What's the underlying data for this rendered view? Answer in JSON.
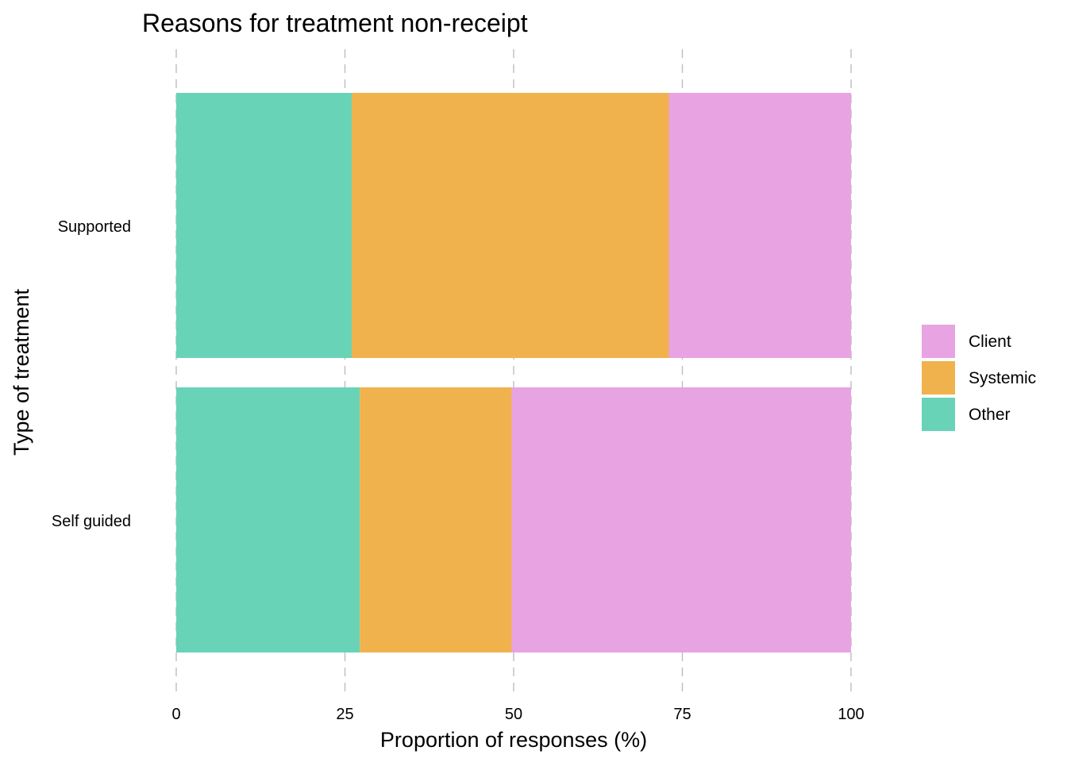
{
  "chart_data": {
    "type": "bar",
    "orientation": "horizontal",
    "stacked": true,
    "title": "Reasons for treatment non-receipt",
    "xlabel": "Proportion of responses (%)",
    "ylabel": "Type of treatment",
    "xlim": [
      0,
      100
    ],
    "x_ticks": [
      0,
      25,
      50,
      75,
      100
    ],
    "grid": "vertical dashed",
    "categories": [
      "Supported",
      "Self guided"
    ],
    "series": [
      {
        "name": "Other",
        "color": "#69D3B8",
        "values": [
          26,
          27.2
        ]
      },
      {
        "name": "Systemic",
        "color": "#F0B24D",
        "values": [
          47,
          22.5
        ]
      },
      {
        "name": "Client",
        "color": "#E8A3E2",
        "values": [
          27,
          50.3
        ]
      }
    ],
    "legend": {
      "placement": "right",
      "order": [
        "Client",
        "Systemic",
        "Other"
      ]
    }
  }
}
